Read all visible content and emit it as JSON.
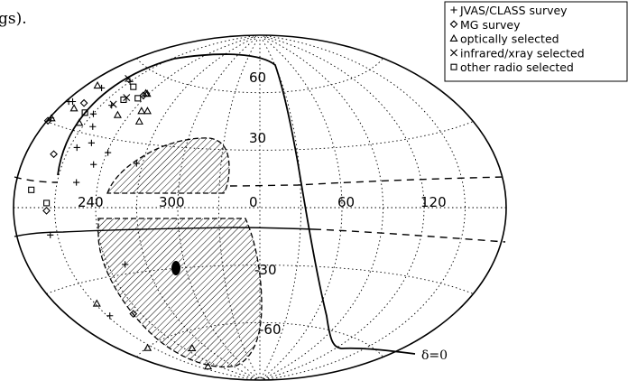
{
  "header_fragment": "gs).",
  "chart_data": {
    "type": "scatter",
    "projection": "aitoff",
    "grid": true,
    "legend_placement": "top-right",
    "x_ticks": [
      "240",
      "300",
      "0",
      "60",
      "120"
    ],
    "y_ticks": [
      "60",
      "30",
      "-30",
      "-60"
    ],
    "annotation": "δ=0",
    "legend": [
      {
        "marker": "plus",
        "label": "JVAS/CLASS survey"
      },
      {
        "marker": "diamond",
        "label": "MG survey"
      },
      {
        "marker": "triangle",
        "label": "optically selected"
      },
      {
        "marker": "cross",
        "label": "infrared/xray selected"
      },
      {
        "marker": "square",
        "label": "other radio selected"
      }
    ],
    "series": [
      {
        "marker": "plus",
        "points": [
          [
            0.52,
            0.93
          ],
          [
            0.02,
            0.55
          ],
          [
            0.04,
            0.67
          ],
          [
            0.09,
            0.68
          ],
          [
            0.25,
            0.82
          ],
          [
            0.53,
            0.66
          ],
          [
            0.62,
            0.42
          ],
          [
            0.66,
            0.58
          ],
          [
            0.67,
            0.75
          ],
          [
            0.77,
            0.18
          ],
          [
            0.78,
            0.47
          ],
          [
            0.93,
            0.32
          ],
          [
            1.06,
            0.42
          ],
          [
            1.49,
            0.36
          ],
          [
            0.43,
            -0.18
          ],
          [
            1.28,
            -0.45
          ],
          [
            0.56,
            -0.78
          ]
        ]
      },
      {
        "marker": "diamond",
        "points": [
          [
            0.99,
            0.88
          ],
          [
            0.01,
            0.53
          ],
          [
            0.26,
            0.7
          ],
          [
            0.36,
            0.35
          ],
          [
            0.42,
            -0.02
          ],
          [
            0.93,
            -0.82
          ]
        ]
      },
      {
        "marker": "triangle",
        "points": [
          [
            0.03,
            0.55
          ],
          [
            0.15,
            0.82
          ],
          [
            0.2,
            0.65
          ],
          [
            0.44,
            0.58
          ],
          [
            0.88,
            0.7
          ],
          [
            1.02,
            0.9
          ],
          [
            0.99,
            0.9
          ],
          [
            1.27,
            0.78
          ],
          [
            1.18,
            0.77
          ],
          [
            1.26,
            0.69
          ],
          [
            0.55,
            -0.68
          ],
          [
            0.43,
            -1.05
          ],
          [
            0.75,
            -1.33
          ],
          [
            1.22,
            -1.18
          ]
        ]
      },
      {
        "marker": "cross",
        "points": [
          [
            0.43,
            0.94
          ],
          [
            0.77,
            0.83
          ],
          [
            0.68,
            0.76
          ]
        ]
      },
      {
        "marker": "square",
        "points": [
          [
            0.68,
            0.91
          ],
          [
            0.95,
            0.85
          ],
          [
            0.4,
            0.65
          ],
          [
            0.76,
            0.81
          ],
          [
            0.21,
            0.11
          ],
          [
            0.42,
            0.03
          ]
        ]
      }
    ]
  }
}
